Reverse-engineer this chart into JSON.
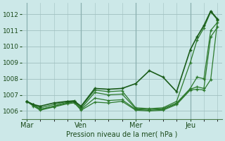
{
  "background_color": "#cce8e8",
  "grid_color": "#a0c0c0",
  "line_color_dark": "#1a5c1a",
  "line_color_light": "#2d7a2d",
  "ylabel": "Pression niveau de la mer( hPa )",
  "ylim": [
    1005.5,
    1012.7
  ],
  "yticks": [
    1006,
    1007,
    1008,
    1009,
    1010,
    1011,
    1012
  ],
  "day_labels": [
    "Mar",
    "Ven",
    "Mer",
    "Jeu"
  ],
  "day_positions": [
    0,
    24,
    48,
    72
  ],
  "xlim": [
    -2,
    86
  ],
  "series": [
    {
      "x": [
        0,
        3,
        6,
        12,
        18,
        21,
        24,
        30,
        36,
        42,
        48,
        54,
        60,
        66,
        72,
        75,
        78,
        81,
        84
      ],
      "y": [
        1006.6,
        1006.4,
        1006.3,
        1006.5,
        1006.6,
        1006.6,
        1006.3,
        1007.4,
        1007.35,
        1007.4,
        1007.7,
        1008.5,
        1008.1,
        1007.2,
        1009.8,
        1010.6,
        1011.3,
        1012.2,
        1011.7
      ]
    },
    {
      "x": [
        0,
        3,
        6,
        12,
        18,
        21,
        24,
        30,
        36,
        42,
        48,
        54,
        60,
        66,
        72,
        75,
        78,
        81,
        84
      ],
      "y": [
        1006.6,
        1006.4,
        1006.2,
        1006.4,
        1006.6,
        1006.65,
        1006.25,
        1007.3,
        1007.2,
        1007.25,
        1006.2,
        1006.15,
        1006.2,
        1006.6,
        1009.0,
        1010.4,
        1011.15,
        1012.15,
        1011.65
      ]
    },
    {
      "x": [
        0,
        3,
        6,
        12,
        18,
        21,
        24,
        30,
        36,
        42,
        48,
        54,
        60,
        66,
        72,
        75,
        78,
        81,
        84
      ],
      "y": [
        1006.6,
        1006.4,
        1006.1,
        1006.3,
        1006.55,
        1006.6,
        1006.15,
        1007.15,
        1007.0,
        1007.05,
        1006.15,
        1006.1,
        1006.15,
        1006.5,
        1007.4,
        1008.1,
        1008.0,
        1011.0,
        1011.5
      ]
    },
    {
      "x": [
        0,
        3,
        6,
        12,
        18,
        21,
        24,
        30,
        36,
        42,
        48,
        54,
        60,
        66,
        72,
        75,
        78,
        81,
        84
      ],
      "y": [
        1006.6,
        1006.35,
        1006.1,
        1006.3,
        1006.5,
        1006.55,
        1006.1,
        1006.8,
        1006.65,
        1006.7,
        1006.1,
        1006.05,
        1006.1,
        1006.45,
        1007.35,
        1007.5,
        1007.4,
        1010.6,
        1011.2
      ]
    },
    {
      "x": [
        0,
        3,
        6,
        12,
        18,
        21,
        24,
        30,
        36,
        42,
        48,
        54,
        60,
        66,
        72,
        75,
        78,
        81,
        84
      ],
      "y": [
        1006.6,
        1006.3,
        1006.05,
        1006.25,
        1006.45,
        1006.5,
        1006.05,
        1006.55,
        1006.5,
        1006.6,
        1006.05,
        1006.0,
        1006.05,
        1006.4,
        1007.3,
        1007.35,
        1007.3,
        1007.95,
        1011.6
      ]
    }
  ]
}
